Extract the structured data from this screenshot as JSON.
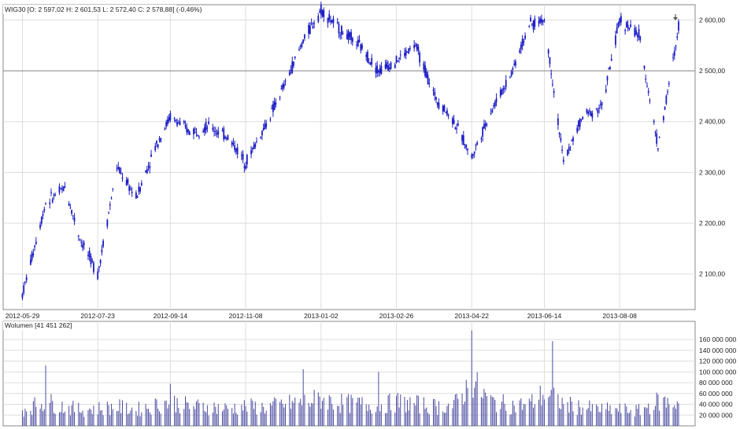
{
  "price_panel": {
    "header": "WIG30 [O: 2 597,02  H: 2 601,53  L: 2 572,40  C: 2 578,88] (-0,46%)"
  },
  "volume_panel": {
    "header": "Wolumen [41 451 262]"
  },
  "colors": {
    "price_candles": "#1c1cc4",
    "volume_bars": "#4a4aa0",
    "grid": "#dddddd",
    "frame": "#8a8a8a",
    "reference_line": "#888888",
    "marker": "#555555"
  },
  "chart_data": [
    {
      "type": "line",
      "style": "ohlc-candles",
      "x_tick_labels": [
        "2012-05-29",
        "2012-07-23",
        "2012-09-14",
        "2012-11-08",
        "2013-01-02",
        "2013-02-26",
        "2013-04-22",
        "2013-06-14",
        "2013-08-08"
      ],
      "y_tick_labels": [
        "2 100,00",
        "2 200,00",
        "2 300,00",
        "2 400,00",
        "2 500,00",
        "2 600,00"
      ],
      "y_ticks": [
        2100,
        2200,
        2300,
        2400,
        2500,
        2600
      ],
      "ylim": [
        2030,
        2630
      ],
      "horizontal_reference_line": 2500,
      "grid": true,
      "last_bar": {
        "open": 2597.02,
        "high": 2601.53,
        "low": 2572.4,
        "close": 2578.88,
        "change": "-0,46%"
      },
      "series": [
        {
          "x": [
            "2012-05-29",
            "2012-06-15",
            "2012-06-29",
            "2012-07-10",
            "2012-07-23",
            "2012-08-06",
            "2012-08-20",
            "2012-09-03",
            "2012-09-14",
            "2012-09-28",
            "2012-10-12",
            "2012-10-26",
            "2012-11-08",
            "2012-11-22",
            "2012-12-06",
            "2012-12-20",
            "2013-01-02",
            "2013-01-16",
            "2013-01-30",
            "2013-02-13",
            "2013-02-26",
            "2013-03-12",
            "2013-03-26",
            "2013-04-09",
            "2013-04-22",
            "2013-05-06",
            "2013-05-20",
            "2013-06-03",
            "2013-06-14",
            "2013-06-28",
            "2013-07-12",
            "2013-07-26",
            "2013-08-08",
            "2013-08-22",
            "2013-09-05",
            "2013-09-20"
          ],
          "values": [
            2060,
            2240,
            2270,
            2170,
            2100,
            2310,
            2250,
            2350,
            2410,
            2380,
            2390,
            2370,
            2320,
            2390,
            2470,
            2560,
            2620,
            2580,
            2550,
            2500,
            2520,
            2550,
            2450,
            2400,
            2330,
            2420,
            2490,
            2590,
            2600,
            2320,
            2410,
            2430,
            2600,
            2570,
            2350,
            2580
          ]
        }
      ]
    },
    {
      "type": "bar",
      "title": "Wolumen",
      "y_tick_labels": [
        "20 000 000",
        "40 000 000",
        "60 000 000",
        "80 000 000",
        "100 000 000",
        "120 000 000",
        "140 000 000",
        "160 000 000"
      ],
      "y_ticks": [
        20000000,
        40000000,
        60000000,
        80000000,
        100000000,
        120000000,
        140000000,
        160000000
      ],
      "ylim": [
        0,
        185000000
      ],
      "last_value": 41451262,
      "series": [
        {
          "x": [
            "2012-05-29",
            "2012-06-15",
            "2012-06-29",
            "2012-07-10",
            "2012-07-23",
            "2012-08-06",
            "2012-08-20",
            "2012-09-03",
            "2012-09-14",
            "2012-09-28",
            "2012-10-12",
            "2012-10-26",
            "2012-11-08",
            "2012-11-22",
            "2012-12-06",
            "2012-12-20",
            "2013-01-02",
            "2013-01-16",
            "2013-01-30",
            "2013-02-13",
            "2013-02-26",
            "2013-03-12",
            "2013-03-26",
            "2013-04-09",
            "2013-04-22",
            "2013-05-06",
            "2013-05-20",
            "2013-06-03",
            "2013-06-14",
            "2013-06-28",
            "2013-07-12",
            "2013-07-26",
            "2013-08-08",
            "2013-08-22",
            "2013-09-05",
            "2013-09-20"
          ],
          "values": [
            30000000,
            45000000,
            35000000,
            30000000,
            32000000,
            35000000,
            30000000,
            38000000,
            45000000,
            36000000,
            35000000,
            32000000,
            36000000,
            34000000,
            40000000,
            44000000,
            50000000,
            42000000,
            40000000,
            38000000,
            44000000,
            40000000,
            36000000,
            38000000,
            80000000,
            45000000,
            38000000,
            40000000,
            60000000,
            40000000,
            34000000,
            30000000,
            30000000,
            28000000,
            45000000,
            41451262
          ],
          "spikes": [
            {
              "x": "2012-06-15",
              "value": 112000000
            },
            {
              "x": "2012-09-14",
              "value": 78000000
            },
            {
              "x": "2012-12-20",
              "value": 105000000
            },
            {
              "x": "2013-02-13",
              "value": 100000000
            },
            {
              "x": "2013-04-22",
              "value": 177000000
            },
            {
              "x": "2013-06-20",
              "value": 157000000
            }
          ]
        }
      ]
    }
  ]
}
